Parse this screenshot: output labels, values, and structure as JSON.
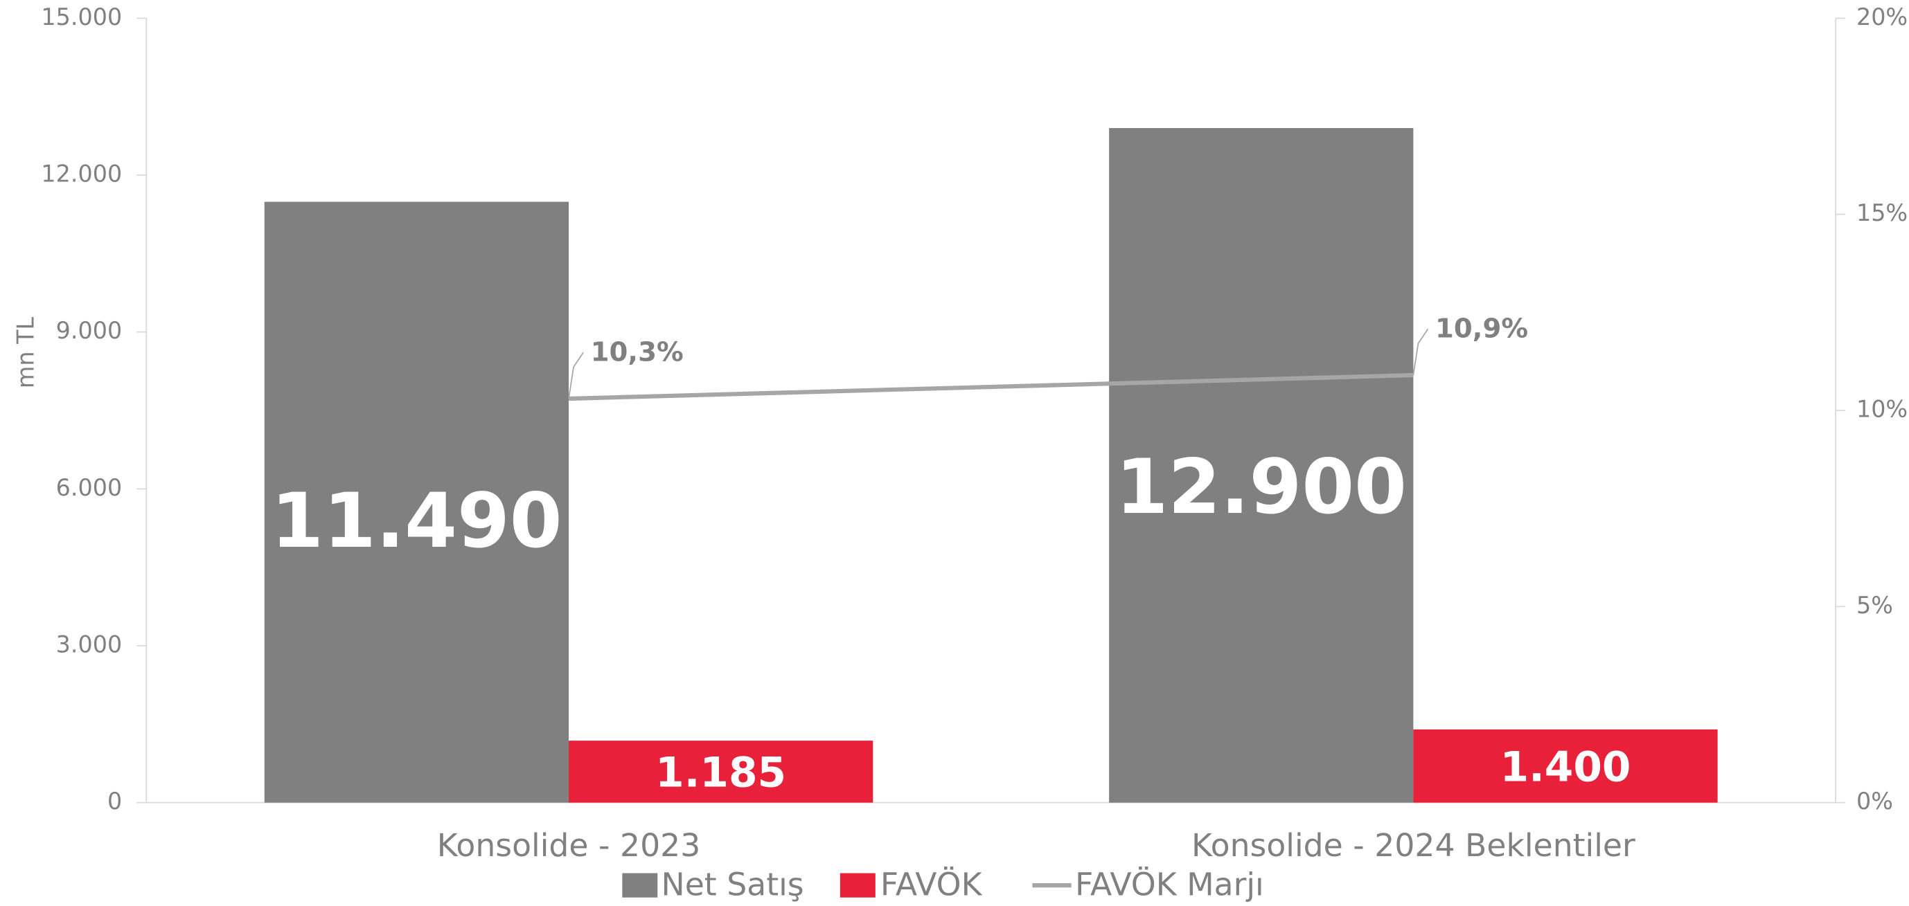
{
  "chart_data": {
    "type": "bar",
    "categories": [
      "Konsolide - 2023",
      "Konsolide - 2024 Beklentiler"
    ],
    "ylabel": "mn TL",
    "series": [
      {
        "name": "Net Satış",
        "color": "#808080",
        "values": [
          11490,
          12900
        ],
        "value_labels": [
          "11.490",
          "12.900"
        ]
      },
      {
        "name": "FAVÖK",
        "color": "#e8203a",
        "values": [
          1185,
          1400
        ],
        "value_labels": [
          "1.185",
          "1.400"
        ]
      },
      {
        "name": "FAVÖK Marjı",
        "type": "line",
        "axis": "y2",
        "color": "#a6a6a6",
        "values": [
          10.3,
          10.9
        ],
        "value_labels": [
          "10,3%",
          "10,9%"
        ]
      }
    ],
    "ylim": [
      0,
      15000
    ],
    "yticks": [
      {
        "value": 0,
        "label": "0"
      },
      {
        "value": 3000,
        "label": "3.000"
      },
      {
        "value": 6000,
        "label": "6.000"
      },
      {
        "value": 9000,
        "label": "9.000"
      },
      {
        "value": 12000,
        "label": "12.000"
      },
      {
        "value": 15000,
        "label": "15.000"
      }
    ],
    "y2lim": [
      0,
      20
    ],
    "y2ticks": [
      {
        "value": 0,
        "label": "0%"
      },
      {
        "value": 5,
        "label": "5%"
      },
      {
        "value": 10,
        "label": "10%"
      },
      {
        "value": 15,
        "label": "15%"
      },
      {
        "value": 20,
        "label": "20%"
      }
    ],
    "legend": "bottom"
  }
}
